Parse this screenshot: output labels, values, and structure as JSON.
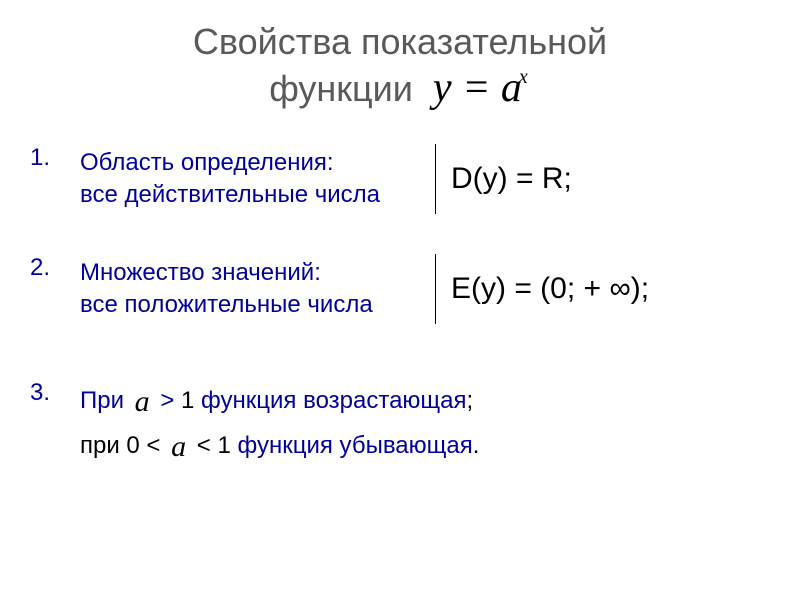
{
  "title": {
    "line1": "Свойства показательной",
    "line2": "функции",
    "formula_y": "y",
    "formula_eq": " = ",
    "formula_a": "a",
    "formula_x": "x"
  },
  "items": [
    {
      "num": "1.",
      "label1": "Область определения:",
      "label2": "все действительные числа",
      "formula": "D(y) = R;"
    },
    {
      "num": "2.",
      "label1": "Множество значений:",
      "label2": "все положительные числа",
      "formula": "E(y) = (0; + ∞);"
    }
  ],
  "item3": {
    "num": "3.",
    "prefix1": "При  ",
    "var1": "a",
    "mid1": "  > ",
    "one": "1 ",
    "text1": "функция возрастающая",
    "semi": ";",
    "prefix2": "при  0 <  ",
    "var2": "a",
    "mid2": "  < 1 ",
    "text2": "функция убывающая",
    "dot": "."
  },
  "colors": {
    "title": "#595959",
    "blue": "#000099",
    "black": "#000000",
    "bg": "#ffffff"
  }
}
